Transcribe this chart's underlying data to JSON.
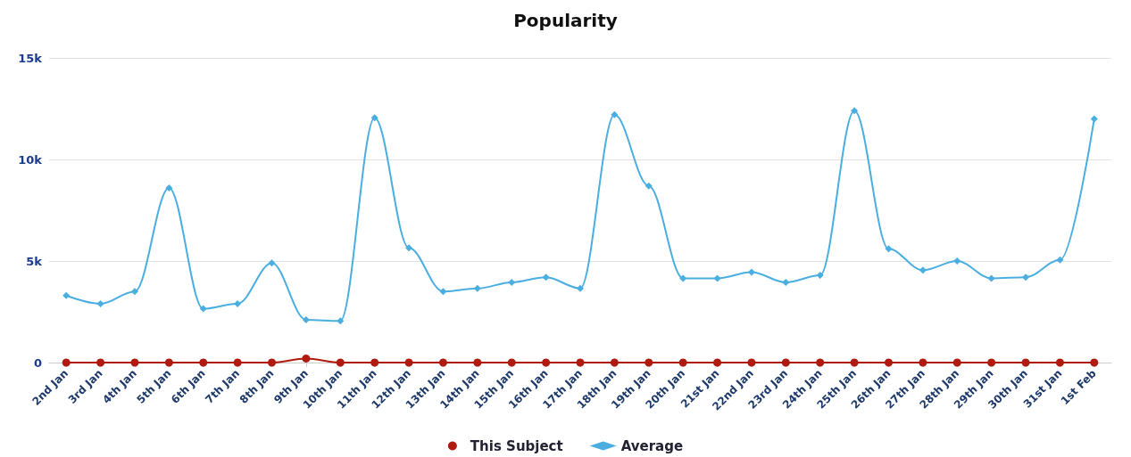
{
  "chart_data": {
    "type": "line",
    "title": "Popularity",
    "categories": [
      "2nd Jan",
      "3rd Jan",
      "4th Jan",
      "5th Jan",
      "6th Jan",
      "7th Jan",
      "8th Jan",
      "9th Jan",
      "10th Jan",
      "11th Jan",
      "12th Jan",
      "13th Jan",
      "14th Jan",
      "15th Jan",
      "16th Jan",
      "17th Jan",
      "18th Jan",
      "19th Jan",
      "20th Jan",
      "21st Jan",
      "22nd Jan",
      "23rd Jan",
      "24th Jan",
      "25th Jan",
      "26th Jan",
      "27th Jan",
      "28th Jan",
      "29th Jan",
      "30th Jan",
      "31st Jan",
      "1st Feb"
    ],
    "series": [
      {
        "name": "This Subject",
        "color": "#b01a10",
        "marker": "circle",
        "values": [
          0,
          0,
          0,
          0,
          0,
          0,
          0,
          200,
          0,
          0,
          0,
          0,
          0,
          0,
          0,
          0,
          0,
          0,
          0,
          0,
          0,
          0,
          0,
          0,
          0,
          0,
          0,
          0,
          0,
          0,
          0
        ]
      },
      {
        "name": "Average",
        "color": "#4aaee0",
        "marker": "diamond",
        "values": [
          3300,
          2900,
          3500,
          8600,
          2650,
          2900,
          4900,
          2100,
          2050,
          12050,
          5650,
          3500,
          3650,
          3950,
          4200,
          3650,
          12200,
          8700,
          4150,
          4150,
          4450,
          3950,
          4300,
          12400,
          5600,
          4550,
          5000,
          4150,
          4200,
          5050,
          12000
        ]
      }
    ],
    "ylim": [
      0,
      15000
    ],
    "yticks": [
      0,
      {
        "value": 5000,
        "label": "5k"
      },
      {
        "value": 10000,
        "label": "10k"
      },
      {
        "value": 15000,
        "label": "15k"
      }
    ],
    "grid": "y",
    "legend": "bottom",
    "line_style": "solid"
  }
}
